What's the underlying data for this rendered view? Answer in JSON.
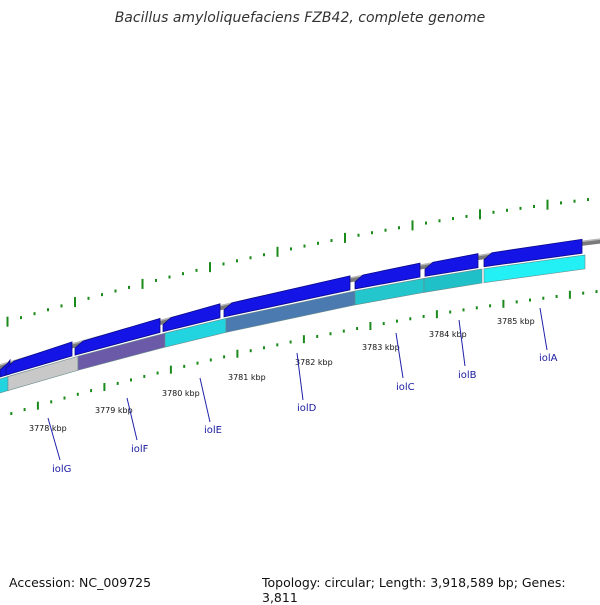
{
  "title": "Bacillus amyloliquefaciens FZB42, complete genome",
  "footer": {
    "accession": "Accession: NC_009725",
    "summary": "Topology: circular; Length: 3,918,589 bp; Genes: 3,811"
  },
  "colors": {
    "backbone": "#8a8a8a",
    "gene_forward": "#1414e6",
    "cds_cyan": "#22d4e0",
    "tick_green": "#1a8a1a",
    "label_blue": "#2222aa"
  },
  "kbp_labels": [
    "3778 kbp",
    "3779 kbp",
    "3780 kbp",
    "3781 kbp",
    "3782 kbp",
    "3783 kbp",
    "3784 kbp",
    "3785 kbp"
  ],
  "genes": [
    "iolG",
    "iolF",
    "iolE",
    "iolD",
    "iolC",
    "iolB",
    "iolA"
  ]
}
